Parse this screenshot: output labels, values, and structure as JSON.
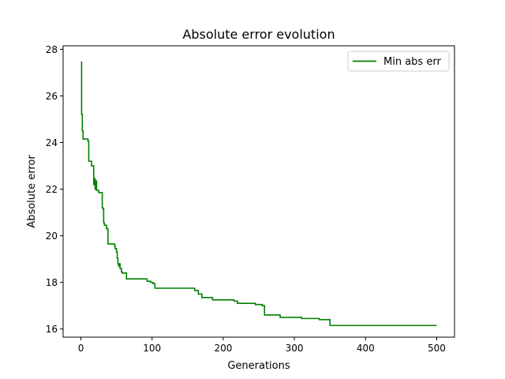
{
  "chart_data": {
    "type": "line",
    "title": "Absolute error evolution",
    "xlabel": "Generations",
    "ylabel": "Absolute error",
    "xlim": [
      -25,
      525
    ],
    "ylim": [
      15.65,
      28.15
    ],
    "xticks": [
      0,
      100,
      200,
      300,
      400,
      500
    ],
    "yticks": [
      16,
      18,
      20,
      22,
      24,
      26,
      28
    ],
    "grid": false,
    "legend_position": "top-right",
    "series": [
      {
        "name": "Min abs err",
        "color": "#008000",
        "step": true,
        "x": [
          0,
          1,
          2,
          3,
          10,
          11,
          15,
          18,
          19,
          20,
          21,
          22,
          25,
          30,
          31,
          32,
          33,
          36,
          38,
          44,
          47,
          48,
          50,
          51,
          52,
          53,
          54,
          55,
          57,
          58,
          63,
          64,
          93,
          98,
          101,
          104,
          160,
          165,
          170,
          185,
          200,
          215,
          220,
          245,
          255,
          258,
          260,
          280,
          310,
          335,
          345,
          350,
          500
        ],
        "y": [
          27.45,
          25.2,
          24.5,
          24.15,
          24.05,
          23.2,
          23.0,
          22.2,
          22.45,
          22.0,
          22.35,
          21.95,
          21.85,
          21.2,
          21.15,
          20.55,
          20.45,
          20.3,
          19.65,
          19.65,
          19.6,
          19.45,
          19.3,
          19.05,
          18.8,
          18.7,
          18.8,
          18.6,
          18.45,
          18.4,
          18.4,
          18.15,
          18.05,
          18.0,
          17.95,
          17.75,
          17.65,
          17.5,
          17.35,
          17.25,
          17.25,
          17.2,
          17.1,
          17.05,
          17.0,
          16.6,
          16.6,
          16.5,
          16.45,
          16.4,
          16.4,
          16.15,
          16.15
        ]
      }
    ]
  }
}
